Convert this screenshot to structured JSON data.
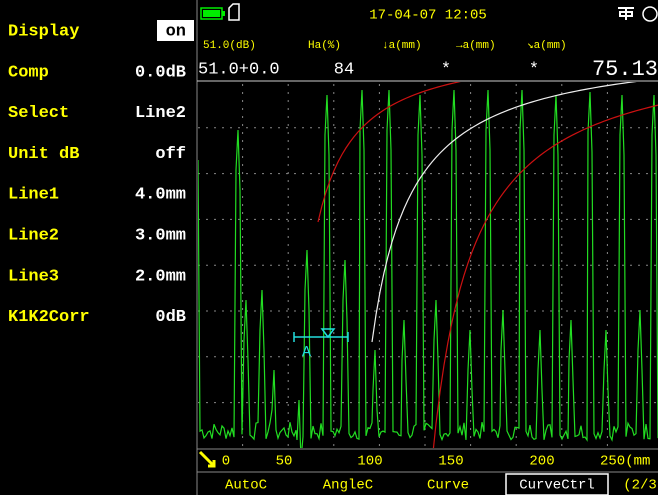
{
  "menu": [
    {
      "label": "Display",
      "value": "on"
    },
    {
      "label": "Comp",
      "value": "0.0dB"
    },
    {
      "label": "Select",
      "value": "Line2"
    },
    {
      "label": "Unit dB",
      "value": "off"
    },
    {
      "label": "Line1",
      "value": "4.0mm"
    },
    {
      "label": "Line2",
      "value": "3.0mm"
    },
    {
      "label": "Line3",
      "value": "2.0mm"
    },
    {
      "label": "K1K2Corr",
      "value": "0dB"
    }
  ],
  "status": {
    "datetime": "17-04-07 12:05"
  },
  "readings": {
    "labels": [
      "51.0(dB)",
      "Ha(%)",
      "↓a(mm)",
      "→a(mm)",
      "↘a(mm)"
    ],
    "values": [
      "51.0+0.0",
      "84",
      "*",
      "*",
      "75.13"
    ]
  },
  "gate": {
    "label": "A"
  },
  "x_axis": {
    "ticks": [
      "0",
      "50",
      "100",
      "150",
      "200",
      "250(mm"
    ]
  },
  "tabs": [
    "AutoC",
    "AngleC",
    "Curve",
    "CurveCtrl",
    "(2/3"
  ]
}
